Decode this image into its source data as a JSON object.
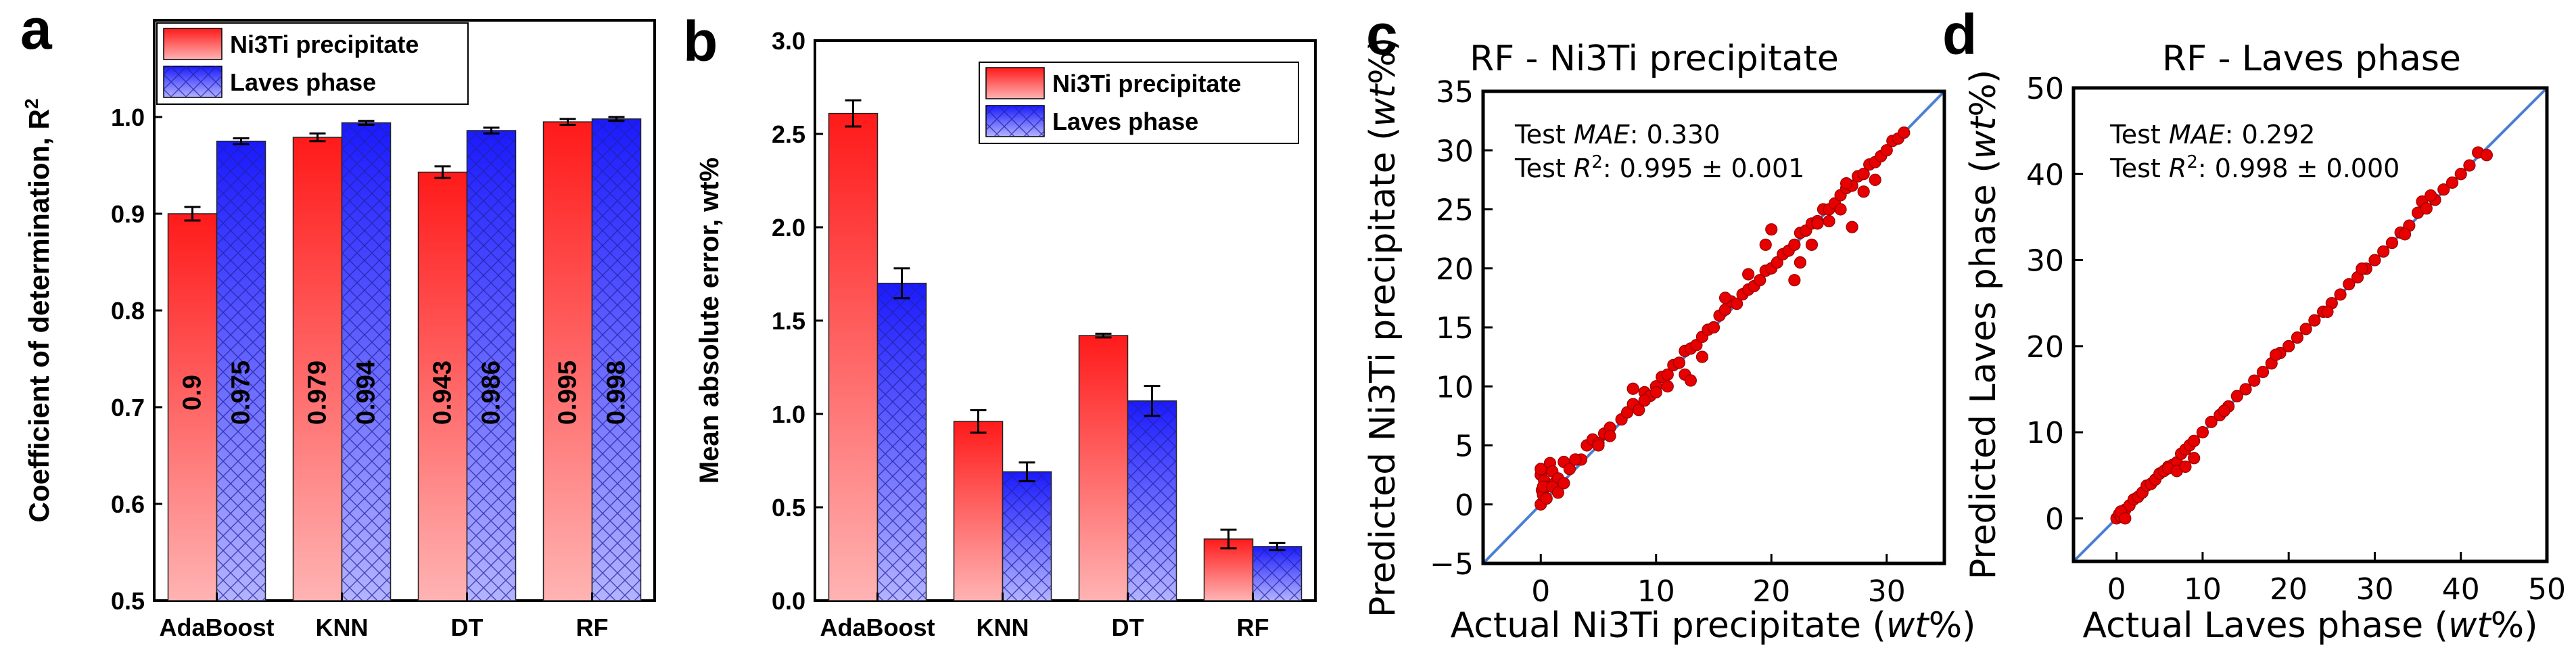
{
  "colors": {
    "ni3ti_top": "#ff1a1a",
    "ni3ti_bottom": "#ffb3b3",
    "laves_top": "#1a1aff",
    "laves_bottom": "#b3b3ff",
    "scatter_point": "#e60000",
    "scatter_edge": "#990000",
    "parity_line": "#4a7fd4"
  },
  "chart_data": [
    {
      "id": "a",
      "type": "bar",
      "panel_label": "a",
      "ylabel": "Coefficient of determination, R",
      "ylabel_sup": "2",
      "categories": [
        "AdaBoost",
        "KNN",
        "DT",
        "RF"
      ],
      "ylim": [
        0.5,
        1.1
      ],
      "yticks": [
        0.5,
        0.6,
        0.7,
        0.8,
        0.9,
        1.0
      ],
      "ytick_labels": [
        "0.5",
        "0.6",
        "0.7",
        "0.8",
        "0.9",
        "1.0"
      ],
      "legend_position": "top-left",
      "series": [
        {
          "name": "Ni3Ti precipitate",
          "values": [
            0.9,
            0.979,
            0.943,
            0.995
          ],
          "errors": [
            0.007,
            0.004,
            0.006,
            0.003
          ],
          "labels": [
            "0.9",
            "0.979",
            "0.943",
            "0.995"
          ]
        },
        {
          "name": "Laves phase",
          "values": [
            0.975,
            0.994,
            0.986,
            0.998
          ],
          "errors": [
            0.003,
            0.002,
            0.003,
            0.002
          ],
          "labels": [
            "0.975",
            "0.994",
            "0.986",
            "0.998"
          ]
        }
      ]
    },
    {
      "id": "b",
      "type": "bar",
      "panel_label": "b",
      "ylabel": "Mean absolute error, wt%",
      "categories": [
        "AdaBoost",
        "KNN",
        "DT",
        "RF"
      ],
      "ylim": [
        0.0,
        3.0
      ],
      "yticks": [
        0.0,
        0.5,
        1.0,
        1.5,
        2.0,
        2.5,
        3.0
      ],
      "ytick_labels": [
        "0.0",
        "0.5",
        "1.0",
        "1.5",
        "2.0",
        "2.5",
        "3.0"
      ],
      "legend_position": "top-right",
      "series": [
        {
          "name": "Ni3Ti precipitate",
          "values": [
            2.61,
            0.96,
            1.42,
            0.33
          ],
          "errors": [
            0.07,
            0.06,
            0.01,
            0.05
          ]
        },
        {
          "name": "Laves phase",
          "values": [
            1.7,
            0.69,
            1.07,
            0.29
          ],
          "errors": [
            0.08,
            0.05,
            0.08,
            0.02
          ]
        }
      ]
    },
    {
      "id": "c",
      "type": "scatter",
      "panel_label": "c",
      "title": "RF - Ni3Ti precipitate",
      "xlabel_pre": "Actual Ni3Ti precipitate (",
      "xlabel_italic": "wt",
      "xlabel_post": "%)",
      "ylabel_pre": "Predicted Ni3Ti precipitate (",
      "ylabel_italic": "wt",
      "ylabel_post": "%)",
      "xlim": [
        -5,
        35
      ],
      "ylim": [
        -5,
        35
      ],
      "xticks": [
        0,
        10,
        20,
        30
      ],
      "xtick_labels": [
        "0",
        "10",
        "20",
        "30"
      ],
      "yticks": [
        -5,
        0,
        5,
        10,
        15,
        20,
        25,
        30,
        35
      ],
      "ytick_labels": [
        "−5",
        "0",
        "5",
        "10",
        "15",
        "20",
        "25",
        "30",
        "35"
      ],
      "annotation_mae_prefix": "Test ",
      "annotation_mae_italic": "MAE",
      "annotation_mae_value": ": 0.330",
      "annotation_r2_prefix": "Test ",
      "annotation_r2_italic": "R",
      "annotation_r2_sup": "2",
      "annotation_r2_value": ": 0.995 ± 0.001",
      "x": [
        0.0,
        0.0,
        0.1,
        0.2,
        0.3,
        0.5,
        0.8,
        1.0,
        1.2,
        1.5,
        2.0,
        2.5,
        3.0,
        3.5,
        4.0,
        4.5,
        5.0,
        5.5,
        6.0,
        7.0,
        7.5,
        8.0,
        8.5,
        9.0,
        9.5,
        10.0,
        10.5,
        11.0,
        11.5,
        12.0,
        12.5,
        13.0,
        13.5,
        14.0,
        14.5,
        15.0,
        15.5,
        16.0,
        16.5,
        17.0,
        17.5,
        18.0,
        18.5,
        19.0,
        19.5,
        20.0,
        20.5,
        21.0,
        21.5,
        22.0,
        22.5,
        23.0,
        23.5,
        24.0,
        24.5,
        25.0,
        25.5,
        26.0,
        26.5,
        27.0,
        27.5,
        28.0,
        28.5,
        29.0,
        29.5,
        30.0,
        30.5,
        31.0,
        31.5,
        0.0,
        0.2,
        0.5,
        1.0,
        1.5,
        2.0,
        3.0,
        8.0,
        9.0,
        10.0,
        12.5,
        13.0,
        14.0,
        19.5,
        20.0,
        22.0,
        22.5,
        23.5,
        24.0,
        25.0,
        26.0,
        26.5,
        27.0,
        28.0,
        29.0,
        5.0,
        6.0,
        11.0,
        16.0,
        18.0
      ],
      "y": [
        0.0,
        2.5,
        1.2,
        0.8,
        2.0,
        1.5,
        3.5,
        2.8,
        1.8,
        2.2,
        3.6,
        3.0,
        3.8,
        3.8,
        5.0,
        5.5,
        5.2,
        6.0,
        6.5,
        7.2,
        7.8,
        8.5,
        8.0,
        9.5,
        9.2,
        10.0,
        10.8,
        11.0,
        11.8,
        12.0,
        13.0,
        13.2,
        13.5,
        14.2,
        14.8,
        15.0,
        16.0,
        16.5,
        17.2,
        17.0,
        17.8,
        18.2,
        18.5,
        19.0,
        19.8,
        20.0,
        20.5,
        21.2,
        21.5,
        22.0,
        23.0,
        23.2,
        23.8,
        24.0,
        25.0,
        25.0,
        25.5,
        26.2,
        26.8,
        27.0,
        27.8,
        28.0,
        28.8,
        29.0,
        29.5,
        30.0,
        30.8,
        31.0,
        31.5,
        3.0,
        1.5,
        0.5,
        1.5,
        1.0,
        1.8,
        3.8,
        9.8,
        8.8,
        9.5,
        11.0,
        10.5,
        12.5,
        22.0,
        23.3,
        19.0,
        20.5,
        22.0,
        23.8,
        24.0,
        25.0,
        27.2,
        23.5,
        26.5,
        27.5,
        5.0,
        5.8,
        10.0,
        17.5,
        19.5
      ]
    },
    {
      "id": "d",
      "type": "scatter",
      "panel_label": "d",
      "title": "RF - Laves phase",
      "xlabel_pre": "Actual Laves phase (",
      "xlabel_italic": "wt",
      "xlabel_post": "%)",
      "ylabel_pre": "Predicted Laves phase (",
      "ylabel_italic": "wt",
      "ylabel_post": "%)",
      "xlim": [
        -5,
        50
      ],
      "ylim": [
        -5,
        50
      ],
      "xticks": [
        0,
        10,
        20,
        30,
        40,
        50
      ],
      "xtick_labels": [
        "0",
        "10",
        "20",
        "30",
        "40",
        "50"
      ],
      "yticks": [
        0,
        10,
        20,
        30,
        40,
        50
      ],
      "ytick_labels": [
        "0",
        "10",
        "20",
        "30",
        "40",
        "50"
      ],
      "annotation_mae_prefix": "Test ",
      "annotation_mae_italic": "MAE",
      "annotation_mae_value": ": 0.292",
      "annotation_r2_prefix": "Test ",
      "annotation_r2_italic": "R",
      "annotation_r2_sup": "2",
      "annotation_r2_value": ": 0.998 ± 0.000",
      "x": [
        0.0,
        0.3,
        0.5,
        1.0,
        1.5,
        2.0,
        2.5,
        3.0,
        3.5,
        4.0,
        4.5,
        5.0,
        5.5,
        6.0,
        6.5,
        7.0,
        7.5,
        8.0,
        8.5,
        9.0,
        10.0,
        11.0,
        12.0,
        13.0,
        14.0,
        15.0,
        16.0,
        17.0,
        18.0,
        19.0,
        20.0,
        21.0,
        22.0,
        23.0,
        24.0,
        25.0,
        26.0,
        27.0,
        28.0,
        29.0,
        30.0,
        31.0,
        32.0,
        33.0,
        34.0,
        35.0,
        35.5,
        36.0,
        37.0,
        38.0,
        39.0,
        40.0,
        41.0,
        42.0,
        43.0,
        6.0,
        7.0,
        8.0,
        9.0,
        0.5,
        1.0,
        12.5,
        18.5,
        24.5,
        28.5,
        33.5,
        36.5
      ],
      "y": [
        0.0,
        0.5,
        0.2,
        1.0,
        1.5,
        2.2,
        2.5,
        3.0,
        3.8,
        4.0,
        4.5,
        5.2,
        5.5,
        6.0,
        6.2,
        6.5,
        7.5,
        8.0,
        8.5,
        9.0,
        10.0,
        11.2,
        12.0,
        13.0,
        14.2,
        15.0,
        16.0,
        17.0,
        18.0,
        19.2,
        20.0,
        21.0,
        22.0,
        23.0,
        24.0,
        25.0,
        26.0,
        27.2,
        28.0,
        29.0,
        30.0,
        31.0,
        32.0,
        33.2,
        34.0,
        35.5,
        36.8,
        36.0,
        37.0,
        38.2,
        39.0,
        40.0,
        41.0,
        42.5,
        42.2,
        5.8,
        5.5,
        6.0,
        7.0,
        0.8,
        0.0,
        12.5,
        19.0,
        24.0,
        29.0,
        33.0,
        37.5
      ]
    }
  ]
}
